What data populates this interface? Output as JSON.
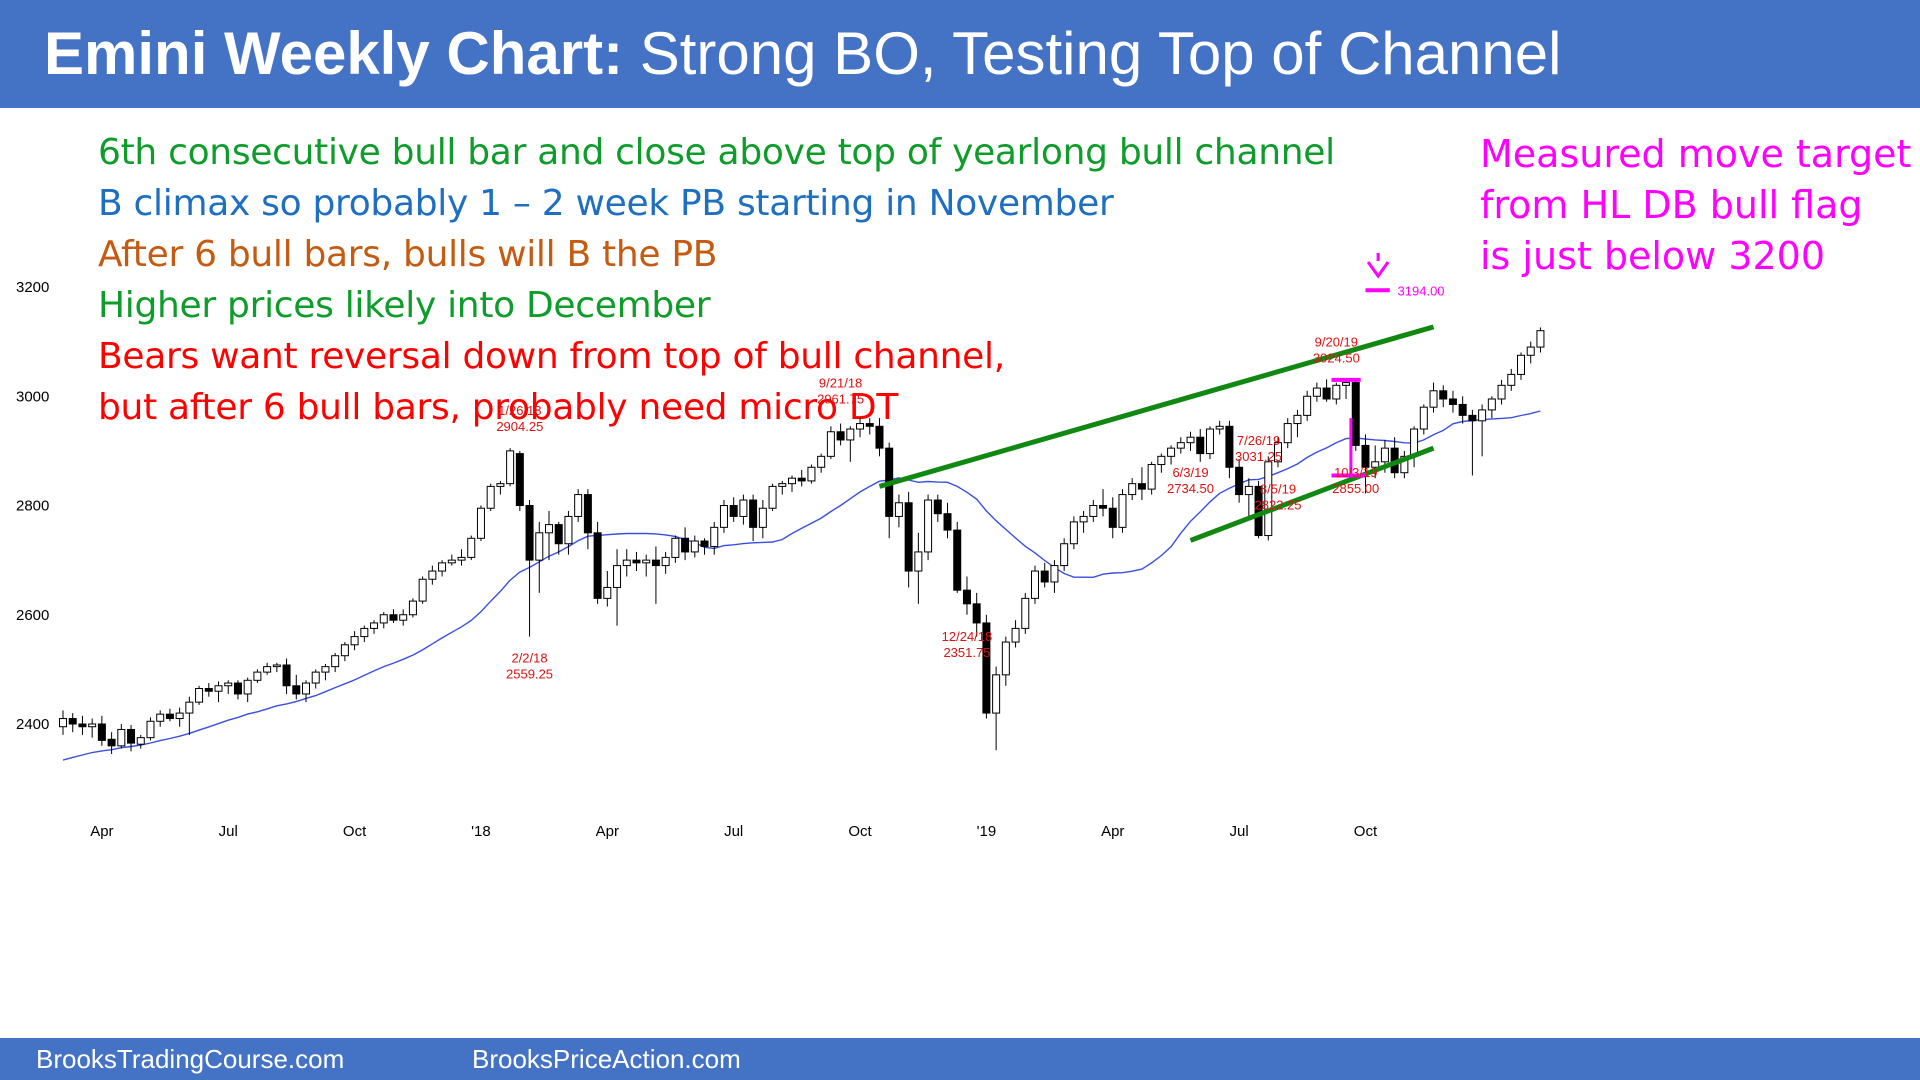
{
  "header": {
    "title_bold": "Emini Weekly Chart:",
    "title_rest": "Strong BO, Testing Top of Channel"
  },
  "footer": {
    "left": "BrooksTradingCourse.com",
    "right": "BrooksPriceAction.com"
  },
  "notes": [
    {
      "text": "6th consecutive bull bar and close above top of yearlong bull channel",
      "color": "#0e9c2a"
    },
    {
      "text": "B climax so probably 1 – 2 week PB starting in November",
      "color": "#1f6fc1"
    },
    {
      "text": "After 6 bull bars, bulls will B the PB",
      "color": "#c55a11"
    },
    {
      "text": "Higher prices likely into December",
      "color": "#0e9c2a"
    },
    {
      "text": "Bears want reversal down from top of bull channel,",
      "color": "#ff0000"
    },
    {
      "text": "but after 6 bull bars, probably need micro DT",
      "color": "#ff0000"
    }
  ],
  "target_note": [
    "Measured move target",
    "from HL DB bull flag",
    "is just below 3200"
  ],
  "colors": {
    "header_bg": "#4472c4",
    "ma": "#3a4fe0",
    "channel": "#118811",
    "target": "#ff00ff",
    "annotation": "#e01010"
  },
  "chart_data": {
    "type": "candlestick",
    "y_ticks": [
      2400,
      2600,
      2800,
      3000,
      3200
    ],
    "ylim": [
      2260,
      3400
    ],
    "x_tick_labels": [
      "Apr",
      "Jul",
      "Oct",
      "'18",
      "Apr",
      "Jul",
      "Oct",
      "'19",
      "Apr",
      "Jul",
      "Oct"
    ],
    "x_tick_weeks": [
      4,
      17,
      30,
      43,
      56,
      69,
      82,
      95,
      108,
      121,
      134
    ],
    "grid": false,
    "annotations": [
      {
        "date": "1/26/18",
        "price": "2904.25",
        "week": 47,
        "value": 2904.25,
        "position": "above"
      },
      {
        "date": "2/2/18",
        "price": "2559.25",
        "week": 48,
        "value": 2559.25,
        "position": "below"
      },
      {
        "date": "9/21/18",
        "price": "2961.75",
        "week": 80,
        "value": 2961.75,
        "position": "above"
      },
      {
        "date": "12/24/18",
        "price": "2351.75",
        "week": 93,
        "value": 2351.75,
        "position": "below"
      },
      {
        "date": "6/3/19",
        "price": "2734.50",
        "week": 116,
        "value": 2734.5,
        "position": "below"
      },
      {
        "date": "7/26/19",
        "price": "3031.25",
        "week": 123,
        "value": 3031.25,
        "position": "above"
      },
      {
        "date": "8/5/19",
        "price": "2822.25",
        "week": 125,
        "value": 2822.25,
        "position": "below"
      },
      {
        "date": "9/20/19",
        "price": "3024.50",
        "week": 131,
        "value": 3024.5,
        "position": "above"
      },
      {
        "date": "10/3/19",
        "price": "2855.00",
        "week": 133,
        "value": 2855.0,
        "position": "below"
      }
    ],
    "target": {
      "label": "3194.00",
      "value": 3194.0,
      "week": 135
    },
    "channel_lines": [
      {
        "from": {
          "week": 84,
          "value": 2835
        },
        "to": {
          "week": 141,
          "value": 3127
        }
      },
      {
        "from": {
          "week": 116,
          "value": 2736
        },
        "to": {
          "week": 141,
          "value": 2905
        }
      }
    ],
    "ohlc": [
      [
        2395,
        2425,
        2380,
        2410
      ],
      [
        2410,
        2420,
        2385,
        2400
      ],
      [
        2400,
        2415,
        2380,
        2395
      ],
      [
        2395,
        2410,
        2375,
        2400
      ],
      [
        2400,
        2415,
        2360,
        2370
      ],
      [
        2372,
        2385,
        2345,
        2360
      ],
      [
        2360,
        2400,
        2355,
        2390
      ],
      [
        2390,
        2398,
        2350,
        2365
      ],
      [
        2363,
        2380,
        2355,
        2375
      ],
      [
        2375,
        2412,
        2370,
        2405
      ],
      [
        2405,
        2425,
        2395,
        2418
      ],
      [
        2418,
        2428,
        2405,
        2410
      ],
      [
        2410,
        2430,
        2395,
        2420
      ],
      [
        2420,
        2450,
        2380,
        2440
      ],
      [
        2440,
        2470,
        2435,
        2465
      ],
      [
        2465,
        2475,
        2450,
        2460
      ],
      [
        2460,
        2478,
        2440,
        2470
      ],
      [
        2470,
        2480,
        2455,
        2475
      ],
      [
        2475,
        2480,
        2445,
        2455
      ],
      [
        2455,
        2485,
        2440,
        2480
      ],
      [
        2480,
        2500,
        2475,
        2495
      ],
      [
        2495,
        2512,
        2490,
        2505
      ],
      [
        2505,
        2512,
        2495,
        2508
      ],
      [
        2508,
        2520,
        2455,
        2470
      ],
      [
        2470,
        2490,
        2445,
        2455
      ],
      [
        2455,
        2480,
        2440,
        2475
      ],
      [
        2475,
        2500,
        2465,
        2495
      ],
      [
        2495,
        2510,
        2480,
        2505
      ],
      [
        2505,
        2530,
        2495,
        2525
      ],
      [
        2525,
        2550,
        2515,
        2545
      ],
      [
        2545,
        2570,
        2535,
        2560
      ],
      [
        2560,
        2580,
        2550,
        2575
      ],
      [
        2575,
        2590,
        2565,
        2585
      ],
      [
        2585,
        2605,
        2575,
        2600
      ],
      [
        2600,
        2610,
        2585,
        2590
      ],
      [
        2590,
        2610,
        2580,
        2600
      ],
      [
        2600,
        2630,
        2595,
        2625
      ],
      [
        2625,
        2670,
        2620,
        2665
      ],
      [
        2665,
        2690,
        2655,
        2680
      ],
      [
        2680,
        2700,
        2670,
        2695
      ],
      [
        2695,
        2710,
        2690,
        2700
      ],
      [
        2700,
        2720,
        2690,
        2705
      ],
      [
        2705,
        2745,
        2700,
        2740
      ],
      [
        2740,
        2800,
        2735,
        2795
      ],
      [
        2795,
        2840,
        2790,
        2835
      ],
      [
        2835,
        2845,
        2820,
        2840
      ],
      [
        2840,
        2905,
        2835,
        2900
      ],
      [
        2895,
        2900,
        2790,
        2800
      ],
      [
        2800,
        2810,
        2560,
        2700
      ],
      [
        2700,
        2770,
        2640,
        2750
      ],
      [
        2750,
        2790,
        2700,
        2765
      ],
      [
        2765,
        2770,
        2710,
        2730
      ],
      [
        2730,
        2790,
        2710,
        2780
      ],
      [
        2780,
        2830,
        2770,
        2820
      ],
      [
        2820,
        2830,
        2720,
        2750
      ],
      [
        2750,
        2770,
        2620,
        2630
      ],
      [
        2630,
        2680,
        2615,
        2650
      ],
      [
        2650,
        2720,
        2580,
        2690
      ],
      [
        2690,
        2720,
        2670,
        2700
      ],
      [
        2700,
        2715,
        2680,
        2695
      ],
      [
        2695,
        2710,
        2670,
        2700
      ],
      [
        2700,
        2725,
        2620,
        2690
      ],
      [
        2690,
        2715,
        2675,
        2705
      ],
      [
        2705,
        2745,
        2695,
        2740
      ],
      [
        2740,
        2760,
        2700,
        2715
      ],
      [
        2715,
        2745,
        2705,
        2735
      ],
      [
        2735,
        2740,
        2710,
        2725
      ],
      [
        2725,
        2770,
        2710,
        2760
      ],
      [
        2760,
        2810,
        2750,
        2800
      ],
      [
        2800,
        2815,
        2770,
        2780
      ],
      [
        2780,
        2820,
        2765,
        2810
      ],
      [
        2810,
        2820,
        2735,
        2760
      ],
      [
        2760,
        2810,
        2740,
        2795
      ],
      [
        2795,
        2840,
        2790,
        2835
      ],
      [
        2835,
        2845,
        2820,
        2840
      ],
      [
        2840,
        2855,
        2825,
        2850
      ],
      [
        2850,
        2865,
        2835,
        2845
      ],
      [
        2845,
        2875,
        2840,
        2870
      ],
      [
        2870,
        2895,
        2860,
        2890
      ],
      [
        2890,
        2945,
        2885,
        2935
      ],
      [
        2935,
        2950,
        2910,
        2920
      ],
      [
        2920,
        2945,
        2880,
        2940
      ],
      [
        2940,
        2960,
        2925,
        2950
      ],
      [
        2950,
        2960,
        2930,
        2945
      ],
      [
        2945,
        2960,
        2890,
        2905
      ],
      [
        2905,
        2915,
        2740,
        2780
      ],
      [
        2780,
        2820,
        2760,
        2805
      ],
      [
        2805,
        2825,
        2650,
        2680
      ],
      [
        2680,
        2750,
        2620,
        2715
      ],
      [
        2715,
        2820,
        2700,
        2810
      ],
      [
        2810,
        2820,
        2770,
        2785
      ],
      [
        2785,
        2805,
        2740,
        2755
      ],
      [
        2755,
        2770,
        2640,
        2645
      ],
      [
        2645,
        2670,
        2600,
        2620
      ],
      [
        2620,
        2640,
        2560,
        2585
      ],
      [
        2585,
        2600,
        2410,
        2420
      ],
      [
        2420,
        2505,
        2352,
        2490
      ],
      [
        2490,
        2560,
        2470,
        2550
      ],
      [
        2550,
        2590,
        2540,
        2575
      ],
      [
        2575,
        2640,
        2565,
        2630
      ],
      [
        2630,
        2690,
        2620,
        2680
      ],
      [
        2680,
        2695,
        2650,
        2660
      ],
      [
        2660,
        2700,
        2640,
        2690
      ],
      [
        2690,
        2740,
        2680,
        2730
      ],
      [
        2730,
        2780,
        2720,
        2770
      ],
      [
        2770,
        2790,
        2750,
        2780
      ],
      [
        2780,
        2810,
        2770,
        2800
      ],
      [
        2800,
        2830,
        2780,
        2795
      ],
      [
        2795,
        2815,
        2740,
        2760
      ],
      [
        2760,
        2830,
        2750,
        2820
      ],
      [
        2820,
        2850,
        2810,
        2840
      ],
      [
        2840,
        2870,
        2810,
        2830
      ],
      [
        2830,
        2880,
        2820,
        2875
      ],
      [
        2875,
        2895,
        2860,
        2890
      ],
      [
        2890,
        2910,
        2875,
        2905
      ],
      [
        2905,
        2925,
        2895,
        2915
      ],
      [
        2915,
        2935,
        2900,
        2925
      ],
      [
        2925,
        2940,
        2880,
        2895
      ],
      [
        2895,
        2945,
        2885,
        2940
      ],
      [
        2940,
        2955,
        2930,
        2945
      ],
      [
        2945,
        2955,
        2850,
        2870
      ],
      [
        2870,
        2885,
        2805,
        2820
      ],
      [
        2820,
        2850,
        2775,
        2835
      ],
      [
        2835,
        2845,
        2740,
        2745
      ],
      [
        2745,
        2890,
        2736,
        2880
      ],
      [
        2880,
        2925,
        2870,
        2915
      ],
      [
        2915,
        2960,
        2905,
        2950
      ],
      [
        2950,
        2975,
        2925,
        2965
      ],
      [
        2965,
        3010,
        2955,
        3000
      ],
      [
        3000,
        3025,
        2990,
        3015
      ],
      [
        3015,
        3031,
        2990,
        2995
      ],
      [
        2995,
        3025,
        2985,
        3020
      ],
      [
        3020,
        3030,
        2995,
        3025
      ],
      [
        3025,
        3028,
        2900,
        2910
      ],
      [
        2910,
        2930,
        2822,
        2870
      ],
      [
        2870,
        2910,
        2850,
        2880
      ],
      [
        2880,
        2920,
        2860,
        2905
      ],
      [
        2905,
        2925,
        2850,
        2860
      ],
      [
        2860,
        2900,
        2850,
        2890
      ],
      [
        2890,
        2945,
        2870,
        2940
      ],
      [
        2940,
        2985,
        2930,
        2980
      ],
      [
        2980,
        3025,
        2970,
        3010
      ],
      [
        3010,
        3020,
        2980,
        2995
      ],
      [
        2995,
        3010,
        2970,
        2985
      ],
      [
        2985,
        3000,
        2950,
        2965
      ],
      [
        2965,
        2975,
        2855,
        2955
      ],
      [
        2955,
        2985,
        2890,
        2975
      ],
      [
        2975,
        3000,
        2960,
        2995
      ],
      [
        2995,
        3030,
        2985,
        3020
      ],
      [
        3020,
        3050,
        3010,
        3040
      ],
      [
        3040,
        3080,
        3030,
        3075
      ],
      [
        3075,
        3100,
        3060,
        3090
      ],
      [
        3090,
        3126,
        3080,
        3120
      ]
    ]
  }
}
